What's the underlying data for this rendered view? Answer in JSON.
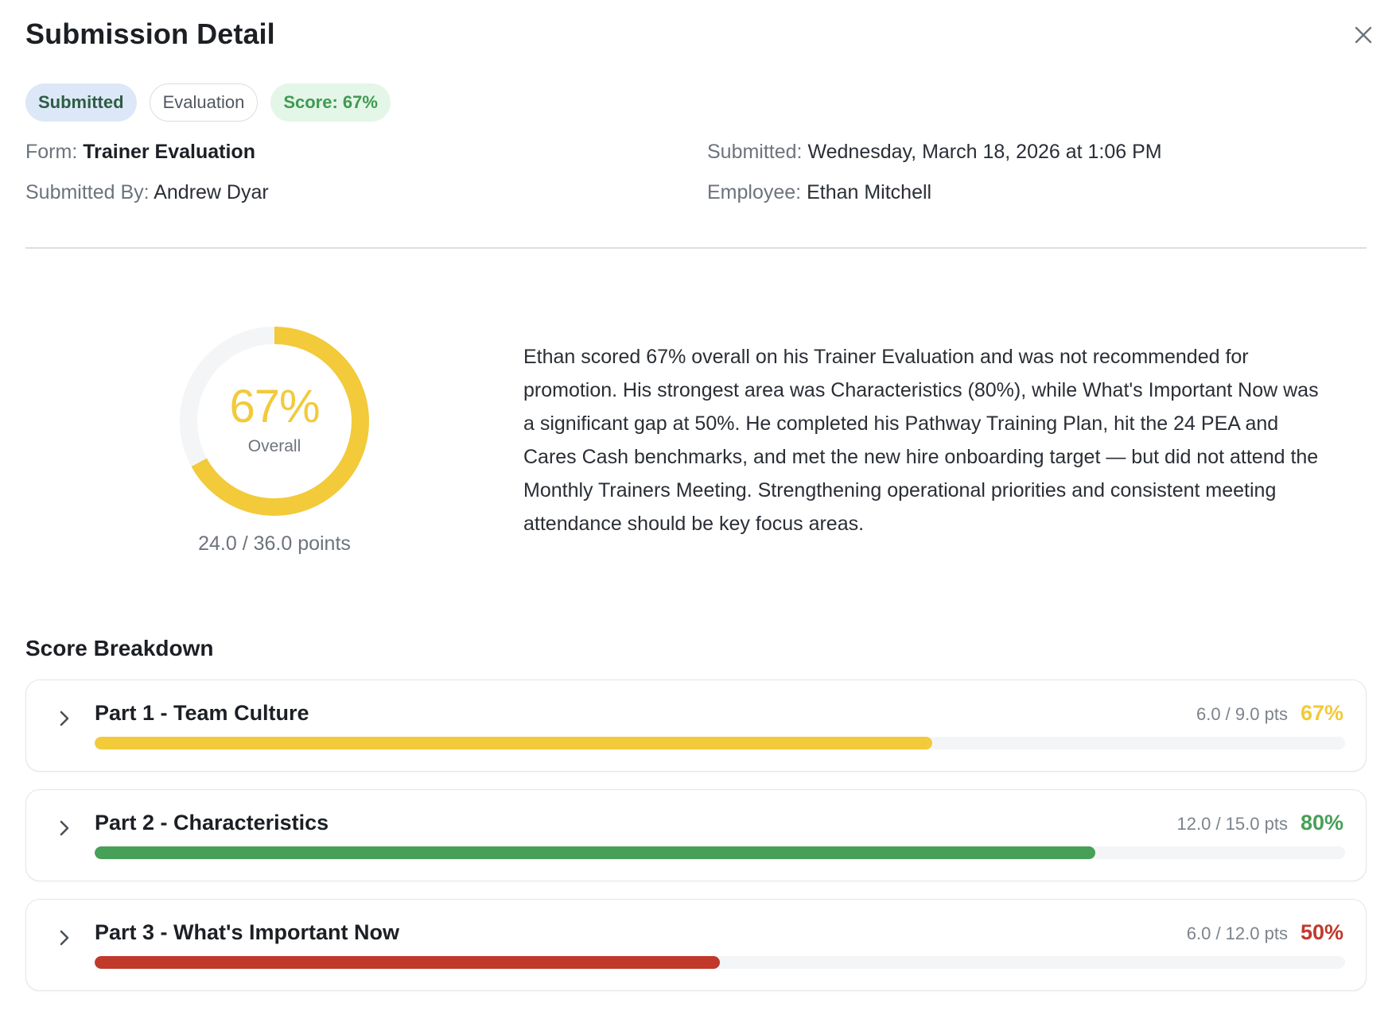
{
  "dialog": {
    "title": "Submission Detail",
    "close_icon": "close-icon"
  },
  "badges": {
    "status": "Submitted",
    "type": "Evaluation",
    "score": "Score: 67%"
  },
  "meta": {
    "form_label": "Form:",
    "form_value": "Trainer Evaluation",
    "submitted_by_label": "Submitted By:",
    "submitted_by_value": "Andrew Dyar",
    "submitted_label": "Submitted:",
    "submitted_value": "Wednesday, March 18, 2026 at 1:06 PM",
    "employee_label": "Employee:",
    "employee_value": "Ethan Mitchell"
  },
  "overall": {
    "percent_text": "67%",
    "percent": 0.67,
    "label": "Overall",
    "points": "24.0 / 36.0 points",
    "color": "#f2ca3a",
    "track_color": "#f4f5f7"
  },
  "summary": "Ethan scored 67% overall on his Trainer Evaluation and was not recommended for promotion. His strongest area was Characteristics (80%), while What's Important Now was a significant gap at 50%. He completed his Pathway Training Plan, hit the 24 PEA and Cares Cash benchmarks, and met the new hire onboarding target — but did not attend the Monthly Trainers Meeting. Strengthening operational priorities and consistent meeting attendance should be key focus areas.",
  "breakdown": {
    "title": "Score Breakdown",
    "parts": [
      {
        "name": "Part 1 - Team Culture",
        "points": "6.0 / 9.0 pts",
        "percent_text": "67%",
        "percent": 0.67,
        "color": "#f2ca3a"
      },
      {
        "name": "Part 2 - Characteristics",
        "points": "12.0 / 15.0 pts",
        "percent_text": "80%",
        "percent": 0.8,
        "color": "#47a057"
      },
      {
        "name": "Part 3 - What's Important Now",
        "points": "6.0 / 12.0 pts",
        "percent_text": "50%",
        "percent": 0.5,
        "color": "#c0392b"
      }
    ]
  }
}
